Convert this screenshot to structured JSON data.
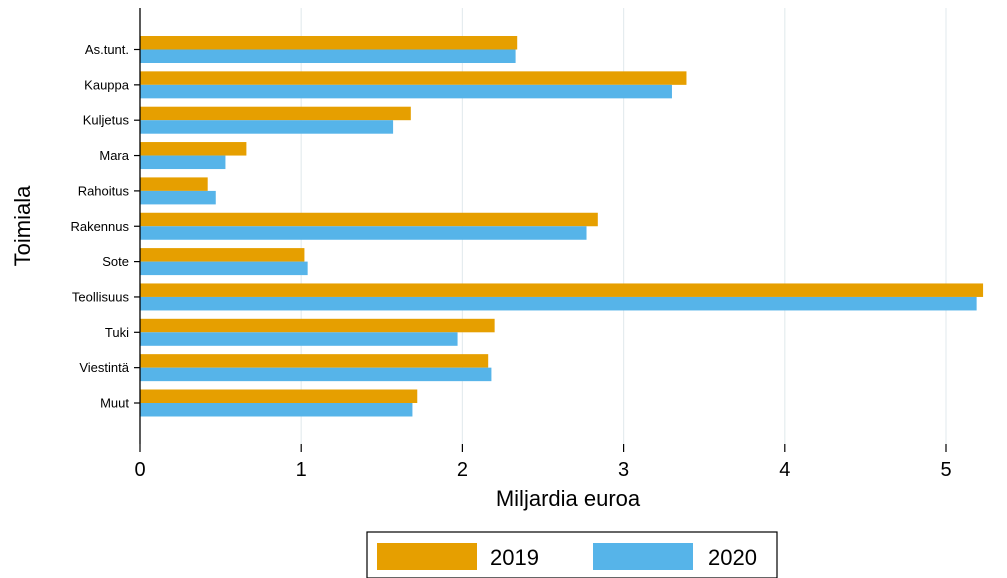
{
  "chart_data": {
    "type": "bar",
    "orientation": "horizontal",
    "title": "",
    "xlabel": "Miljardia euroa",
    "ylabel": "Toimiala",
    "xlim": [
      0,
      5.2
    ],
    "xticks": [
      "0",
      "1",
      "2",
      "3",
      "4",
      "5"
    ],
    "grid": true,
    "legend_position": "bottom",
    "categories": [
      "As.tunt.",
      "Kauppa",
      "Kuljetus",
      "Mara",
      "Rahoitus",
      "Rakennus",
      "Sote",
      "Teollisuus",
      "Tuki",
      "Viestintä",
      "Muut"
    ],
    "series": [
      {
        "name": "2019",
        "color": "#E69F00",
        "values": [
          2.34,
          3.39,
          1.68,
          0.66,
          0.42,
          2.84,
          1.02,
          5.23,
          2.2,
          2.16,
          1.72
        ]
      },
      {
        "name": "2020",
        "color": "#56B4E9",
        "values": [
          2.33,
          3.3,
          1.57,
          0.53,
          0.47,
          2.77,
          1.04,
          5.19,
          1.97,
          2.18,
          1.69
        ]
      }
    ]
  }
}
